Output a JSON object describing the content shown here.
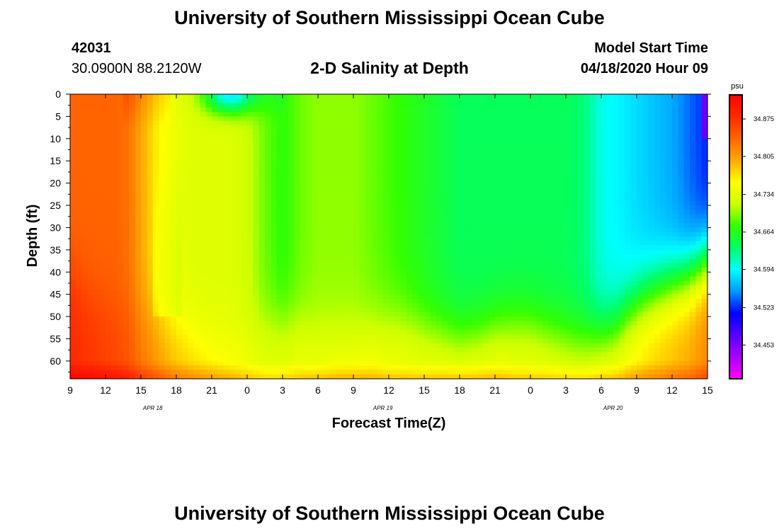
{
  "header": {
    "title": "University of Southern Mississippi Ocean Cube",
    "station_id": "42031",
    "location": "30.0900N 88.2120W",
    "plot_title": "2-D Salinity at Depth",
    "model_label": "Model Start Time",
    "model_time": "04/18/2020 Hour 09"
  },
  "footer": {
    "title": "University of Southern Mississippi Ocean Cube"
  },
  "chart_data": {
    "type": "heatmap",
    "title": "2-D Salinity at Depth",
    "xlabel": "Forecast Time(Z)",
    "ylabel": "Depth (ft)",
    "x_tick_labels": [
      "9",
      "12",
      "15",
      "18",
      "21",
      "0",
      "3",
      "6",
      "9",
      "12",
      "15",
      "18",
      "21",
      "0",
      "3",
      "6",
      "9",
      "12",
      "15"
    ],
    "x_hours_range": [
      0,
      54
    ],
    "date_labels": [
      {
        "label": "APR 18",
        "hour": 7
      },
      {
        "label": "APR 19",
        "hour": 26.5
      },
      {
        "label": "APR 20",
        "hour": 46
      }
    ],
    "y_ticks": [
      0,
      5,
      10,
      15,
      20,
      25,
      30,
      35,
      40,
      45,
      50,
      55,
      60
    ],
    "ylim": [
      0,
      64
    ],
    "colorbar": {
      "unit": "psu",
      "ticks": [
        34.875,
        34.805,
        34.734,
        34.664,
        34.594,
        34.523,
        34.453
      ],
      "tick_labels": [
        "34.875",
        "34.805",
        "34.734",
        "34.664",
        "34.594",
        "34.523",
        "34.453"
      ],
      "range": [
        34.39,
        34.92
      ],
      "colors": [
        "#ff00ff",
        "#aa00ff",
        "#5500ff",
        "#0000ff",
        "#0099ff",
        "#00ffff",
        "#00ff66",
        "#33ff00",
        "#ccff00",
        "#ffff00",
        "#ffaa00",
        "#ff6600",
        "#ff2a00",
        "#ff0000"
      ]
    },
    "profile": {
      "hours": [
        0,
        2,
        4,
        5,
        6,
        7.5,
        9,
        10.5,
        12,
        13.5,
        15,
        16.5,
        18,
        19.5,
        21,
        22.5,
        24,
        25.5,
        27,
        28.5,
        30,
        31.5,
        33,
        34.5,
        36,
        37.5,
        39,
        40.5,
        42,
        43.5,
        45,
        46.5,
        48,
        49.5,
        51,
        52.5,
        54
      ],
      "mid": [
        34.84,
        34.84,
        34.84,
        34.83,
        34.8,
        34.76,
        34.74,
        34.73,
        34.73,
        34.73,
        34.72,
        34.69,
        34.67,
        34.69,
        34.7,
        34.7,
        34.7,
        34.69,
        34.68,
        34.67,
        34.66,
        34.65,
        34.64,
        34.64,
        34.64,
        34.64,
        34.64,
        34.64,
        34.64,
        34.63,
        34.6,
        34.59,
        34.58,
        34.57,
        34.56,
        34.54,
        34.52
      ],
      "bottom": [
        34.88,
        34.87,
        34.86,
        34.85,
        34.83,
        34.81,
        34.79,
        34.78,
        34.77,
        34.76,
        34.75,
        34.74,
        34.74,
        34.75,
        34.75,
        34.76,
        34.76,
        34.76,
        34.75,
        34.75,
        34.75,
        34.76,
        34.76,
        34.76,
        34.76,
        34.75,
        34.75,
        34.75,
        34.75,
        34.75,
        34.76,
        34.76,
        34.77,
        34.78,
        34.79,
        34.8,
        34.82
      ]
    }
  }
}
